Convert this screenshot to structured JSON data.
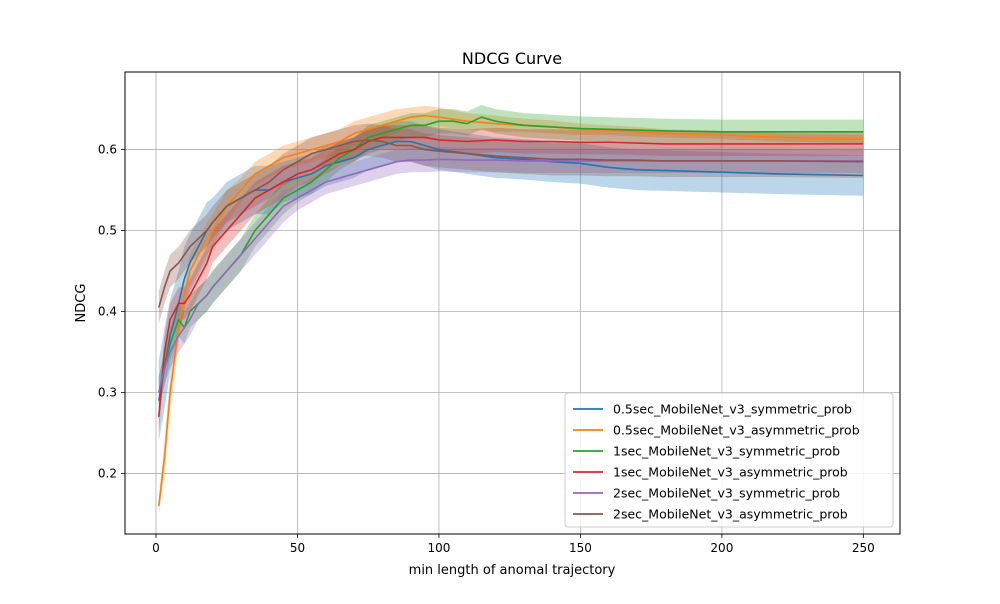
{
  "chart_data": {
    "type": "line",
    "title": "NDCG Curve",
    "xlabel": "min length of anomal trajectory",
    "ylabel": "NDCG",
    "xlim": [
      -10.95,
      262.95
    ],
    "ylim": [
      0.1252,
      0.6958
    ],
    "x_ticks": [
      0,
      50,
      100,
      150,
      200,
      250
    ],
    "y_ticks": [
      0.2,
      0.3,
      0.4,
      0.5,
      0.6
    ],
    "x_tick_labels": [
      "0",
      "50",
      "100",
      "150",
      "200",
      "250"
    ],
    "y_tick_labels": [
      "0.2",
      "0.3",
      "0.4",
      "0.5",
      "0.6"
    ],
    "grid": true,
    "legend_position": "lower-right",
    "series": [
      {
        "name": "0.5sec_MobileNet_v3_symmetric_prob",
        "color": "#1f77b4",
        "x": [
          1,
          3,
          5,
          8,
          10,
          12,
          15,
          18,
          20,
          25,
          30,
          35,
          40,
          45,
          50,
          55,
          60,
          65,
          70,
          75,
          80,
          85,
          90,
          95,
          100,
          110,
          120,
          130,
          140,
          150,
          160,
          170,
          180,
          200,
          220,
          250
        ],
        "y": [
          0.29,
          0.33,
          0.37,
          0.41,
          0.44,
          0.46,
          0.48,
          0.5,
          0.51,
          0.53,
          0.54,
          0.55,
          0.55,
          0.56,
          0.565,
          0.57,
          0.58,
          0.585,
          0.59,
          0.6,
          0.605,
          0.61,
          0.61,
          0.605,
          0.6,
          0.595,
          0.59,
          0.588,
          0.585,
          0.583,
          0.578,
          0.575,
          0.574,
          0.572,
          0.57,
          0.568
        ],
        "band": [
          0.05,
          0.05,
          0.045,
          0.04,
          0.04,
          0.035,
          0.035,
          0.035,
          0.03,
          0.03,
          0.03,
          0.03,
          0.03,
          0.025,
          0.025,
          0.025,
          0.025,
          0.025,
          0.025,
          0.025,
          0.025,
          0.025,
          0.025,
          0.025,
          0.025,
          0.025,
          0.025,
          0.025,
          0.025,
          0.025,
          0.025,
          0.025,
          0.025,
          0.025,
          0.025,
          0.025
        ]
      },
      {
        "name": "0.5sec_MobileNet_v3_asymmetric_prob",
        "color": "#ff7f0e",
        "x": [
          1,
          3,
          5,
          8,
          10,
          12,
          15,
          18,
          20,
          25,
          30,
          35,
          40,
          45,
          50,
          55,
          60,
          65,
          70,
          75,
          80,
          85,
          90,
          95,
          100,
          110,
          120,
          130,
          140,
          150,
          160,
          170,
          180,
          200,
          220,
          250
        ],
        "y": [
          0.16,
          0.22,
          0.3,
          0.38,
          0.42,
          0.45,
          0.47,
          0.49,
          0.5,
          0.53,
          0.55,
          0.57,
          0.58,
          0.59,
          0.595,
          0.6,
          0.605,
          0.61,
          0.62,
          0.625,
          0.63,
          0.635,
          0.64,
          0.642,
          0.64,
          0.635,
          0.632,
          0.63,
          0.628,
          0.625,
          0.624,
          0.622,
          0.62,
          0.618,
          0.615,
          0.613
        ],
        "band": [
          0.01,
          0.02,
          0.02,
          0.02,
          0.02,
          0.02,
          0.02,
          0.02,
          0.02,
          0.02,
          0.015,
          0.015,
          0.015,
          0.015,
          0.015,
          0.015,
          0.015,
          0.015,
          0.015,
          0.015,
          0.015,
          0.015,
          0.012,
          0.012,
          0.012,
          0.01,
          0.01,
          0.008,
          0.008,
          0.007,
          0.006,
          0.006,
          0.005,
          0.005,
          0.005,
          0.005
        ]
      },
      {
        "name": "1sec_MobileNet_v3_symmetric_prob",
        "color": "#2ca02c",
        "x": [
          1,
          3,
          5,
          8,
          10,
          12,
          15,
          18,
          20,
          25,
          30,
          35,
          40,
          45,
          50,
          55,
          60,
          65,
          70,
          75,
          80,
          85,
          90,
          95,
          100,
          105,
          110,
          115,
          120,
          130,
          140,
          150,
          160,
          170,
          180,
          200,
          220,
          250
        ],
        "y": [
          0.3,
          0.33,
          0.36,
          0.39,
          0.38,
          0.4,
          0.41,
          0.42,
          0.43,
          0.45,
          0.47,
          0.5,
          0.52,
          0.54,
          0.55,
          0.56,
          0.575,
          0.59,
          0.6,
          0.615,
          0.62,
          0.625,
          0.63,
          0.63,
          0.635,
          0.635,
          0.632,
          0.64,
          0.635,
          0.63,
          0.628,
          0.626,
          0.625,
          0.624,
          0.623,
          0.622,
          0.622,
          0.622
        ],
        "band": [
          0.02,
          0.02,
          0.02,
          0.02,
          0.02,
          0.02,
          0.02,
          0.02,
          0.02,
          0.02,
          0.02,
          0.02,
          0.02,
          0.02,
          0.015,
          0.015,
          0.015,
          0.015,
          0.015,
          0.015,
          0.015,
          0.015,
          0.015,
          0.015,
          0.015,
          0.015,
          0.015,
          0.015,
          0.015,
          0.015,
          0.015,
          0.015,
          0.015,
          0.015,
          0.015,
          0.015,
          0.015,
          0.015
        ]
      },
      {
        "name": "1sec_MobileNet_v3_asymmetric_prob",
        "color": "#d62728",
        "x": [
          1,
          3,
          5,
          8,
          10,
          12,
          15,
          18,
          20,
          25,
          30,
          35,
          40,
          45,
          50,
          55,
          60,
          65,
          70,
          75,
          80,
          85,
          90,
          95,
          100,
          110,
          120,
          130,
          140,
          150,
          160,
          170,
          180,
          200,
          220,
          250
        ],
        "y": [
          0.27,
          0.35,
          0.39,
          0.41,
          0.41,
          0.42,
          0.44,
          0.46,
          0.48,
          0.5,
          0.52,
          0.54,
          0.55,
          0.56,
          0.57,
          0.575,
          0.585,
          0.595,
          0.6,
          0.61,
          0.615,
          0.615,
          0.615,
          0.615,
          0.612,
          0.61,
          0.612,
          0.61,
          0.61,
          0.609,
          0.609,
          0.608,
          0.607,
          0.607,
          0.607,
          0.607
        ],
        "band": [
          0.02,
          0.02,
          0.02,
          0.02,
          0.02,
          0.02,
          0.02,
          0.02,
          0.02,
          0.02,
          0.02,
          0.02,
          0.02,
          0.02,
          0.015,
          0.015,
          0.015,
          0.015,
          0.015,
          0.015,
          0.015,
          0.015,
          0.015,
          0.015,
          0.015,
          0.015,
          0.015,
          0.015,
          0.015,
          0.015,
          0.015,
          0.015,
          0.015,
          0.015,
          0.015,
          0.015
        ]
      },
      {
        "name": "2sec_MobileNet_v3_symmetric_prob",
        "color": "#9467bd",
        "x": [
          1,
          3,
          5,
          8,
          10,
          12,
          15,
          18,
          20,
          25,
          30,
          35,
          40,
          45,
          50,
          55,
          60,
          65,
          70,
          75,
          80,
          85,
          90,
          95,
          100,
          110,
          120,
          130,
          140,
          150,
          160,
          170,
          180,
          200,
          220,
          250
        ],
        "y": [
          0.3,
          0.33,
          0.35,
          0.37,
          0.38,
          0.39,
          0.41,
          0.42,
          0.43,
          0.45,
          0.47,
          0.49,
          0.51,
          0.53,
          0.54,
          0.55,
          0.56,
          0.565,
          0.57,
          0.575,
          0.58,
          0.585,
          0.587,
          0.587,
          0.588,
          0.587,
          0.587,
          0.586,
          0.586,
          0.586,
          0.586,
          0.586,
          0.586,
          0.586,
          0.586,
          0.586
        ],
        "band": [
          0.02,
          0.02,
          0.02,
          0.02,
          0.02,
          0.02,
          0.02,
          0.02,
          0.02,
          0.02,
          0.02,
          0.02,
          0.02,
          0.02,
          0.015,
          0.015,
          0.015,
          0.015,
          0.015,
          0.015,
          0.015,
          0.015,
          0.015,
          0.015,
          0.015,
          0.015,
          0.015,
          0.015,
          0.015,
          0.015,
          0.015,
          0.015,
          0.015,
          0.015,
          0.015,
          0.015
        ]
      },
      {
        "name": "2sec_MobileNet_v3_asymmetric_prob",
        "color": "#8c564b",
        "x": [
          1,
          3,
          5,
          8,
          10,
          12,
          15,
          18,
          20,
          25,
          30,
          35,
          40,
          45,
          50,
          55,
          60,
          65,
          70,
          75,
          80,
          85,
          90,
          95,
          100,
          110,
          120,
          130,
          140,
          150,
          160,
          170,
          180,
          200,
          220,
          250
        ],
        "y": [
          0.405,
          0.43,
          0.45,
          0.46,
          0.47,
          0.48,
          0.49,
          0.5,
          0.51,
          0.53,
          0.54,
          0.55,
          0.56,
          0.575,
          0.585,
          0.595,
          0.6,
          0.605,
          0.61,
          0.612,
          0.61,
          0.605,
          0.605,
          0.6,
          0.598,
          0.595,
          0.592,
          0.59,
          0.588,
          0.588,
          0.587,
          0.587,
          0.586,
          0.586,
          0.586,
          0.585
        ],
        "band": [
          0.02,
          0.02,
          0.02,
          0.02,
          0.02,
          0.02,
          0.02,
          0.02,
          0.02,
          0.02,
          0.02,
          0.02,
          0.02,
          0.02,
          0.02,
          0.02,
          0.02,
          0.02,
          0.02,
          0.02,
          0.02,
          0.02,
          0.02,
          0.02,
          0.02,
          0.02,
          0.02,
          0.02,
          0.02,
          0.02,
          0.02,
          0.02,
          0.02,
          0.02,
          0.02,
          0.02
        ]
      }
    ]
  }
}
